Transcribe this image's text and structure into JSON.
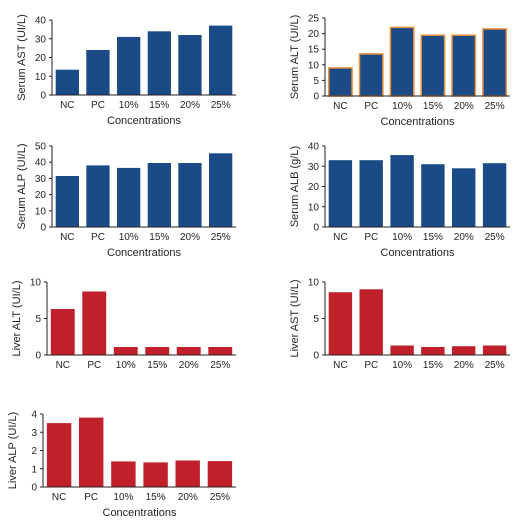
{
  "colors": {
    "blue": "#1b4b86",
    "red": "#c0202a",
    "orange_outline": "#f0923a",
    "axis": "#231f20"
  },
  "chart_data": [
    {
      "id": "serum-ast",
      "type": "bar",
      "categories": [
        "NC",
        "PC",
        "10%",
        "15%",
        "20%",
        "25%"
      ],
      "values": [
        13.5,
        24,
        31,
        34,
        32,
        37
      ],
      "ylabel": "Serum AST (UI/L)",
      "xlabel": "Concentrations",
      "ylim": [
        0,
        40
      ],
      "yticks": [
        0,
        10,
        20,
        30,
        40
      ],
      "color": "#1b4b86"
    },
    {
      "id": "serum-alt",
      "type": "bar",
      "categories": [
        "NC",
        "PC",
        "10%",
        "15%",
        "20%",
        "25%"
      ],
      "values": [
        9,
        13.5,
        22,
        19.5,
        19.5,
        21.5
      ],
      "ylabel": "Serum ALT (UI/L)",
      "xlabel": "Concentrations",
      "ylim": [
        0,
        25
      ],
      "yticks": [
        0,
        5,
        10,
        15,
        20,
        25
      ],
      "color": "#1b4b86",
      "outline": "#f0923a"
    },
    {
      "id": "serum-alp",
      "type": "bar",
      "categories": [
        "NC",
        "PC",
        "10%",
        "15%",
        "20%",
        "25%"
      ],
      "values": [
        31.5,
        38,
        36.5,
        39.5,
        39.5,
        45.5
      ],
      "ylabel": "Serum ALP (UI/L)",
      "xlabel": "Concentrations",
      "ylim": [
        0,
        50
      ],
      "yticks": [
        0,
        10,
        20,
        30,
        40,
        50
      ],
      "color": "#1b4b86"
    },
    {
      "id": "serum-alb",
      "type": "bar",
      "categories": [
        "NC",
        "PC",
        "10%",
        "15%",
        "20%",
        "25%"
      ],
      "values": [
        33,
        33,
        35.5,
        31,
        29,
        31.5
      ],
      "ylabel": "Serum ALB (g/L)",
      "xlabel": "Concentrations",
      "ylim": [
        0,
        40
      ],
      "yticks": [
        0,
        10,
        20,
        30,
        40
      ],
      "color": "#1b4b86"
    },
    {
      "id": "liver-alt",
      "type": "bar",
      "categories": [
        "NC",
        "PC",
        "10%",
        "15%",
        "20%",
        "25%"
      ],
      "values": [
        6.3,
        8.7,
        1.1,
        1.1,
        1.1,
        1.1
      ],
      "ylabel": "Liver ALT (UI/L)",
      "xlabel": "",
      "ylim": [
        0,
        10
      ],
      "yticks": [
        0,
        5,
        10
      ],
      "color": "#c0202a"
    },
    {
      "id": "liver-ast",
      "type": "bar",
      "categories": [
        "NC",
        "PC",
        "10%",
        "15%",
        "20%",
        "25%"
      ],
      "values": [
        8.6,
        9,
        1.3,
        1.1,
        1.2,
        1.3
      ],
      "ylabel": "Liver AST (UI/L)",
      "xlabel": "",
      "ylim": [
        0,
        10
      ],
      "yticks": [
        0,
        5,
        10
      ],
      "color": "#c0202a"
    },
    {
      "id": "liver-alp",
      "type": "bar",
      "categories": [
        "NC",
        "PC",
        "10%",
        "15%",
        "20%",
        "25%"
      ],
      "values": [
        3.5,
        3.8,
        1.4,
        1.35,
        1.45,
        1.42
      ],
      "ylabel": "Liver ALP (UI/L)",
      "xlabel": "Concentrations",
      "ylim": [
        0,
        4
      ],
      "yticks": [
        0,
        1,
        2,
        3,
        4
      ],
      "color": "#c0202a"
    }
  ]
}
